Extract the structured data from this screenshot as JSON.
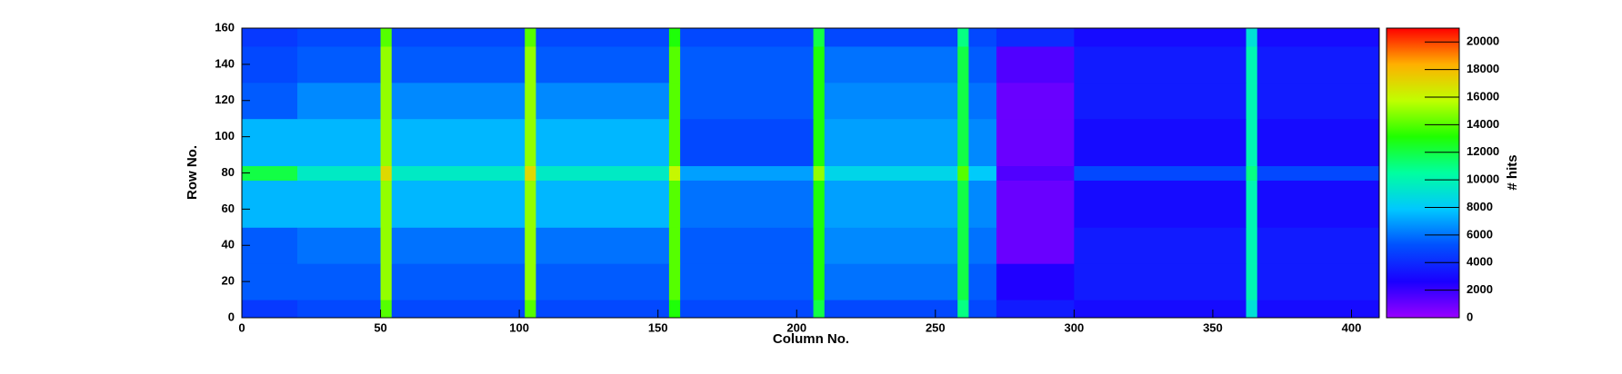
{
  "chart_data": {
    "type": "heatmap",
    "x_label": "Column No.",
    "y_label": "Row No.",
    "z_label": "# hits",
    "x_edges": [
      0,
      20,
      50,
      54,
      102,
      106,
      154,
      158,
      206,
      210,
      258,
      262,
      272,
      300,
      362,
      366,
      410
    ],
    "y_edges": [
      0,
      10,
      30,
      50,
      76,
      84,
      110,
      130,
      150,
      160
    ],
    "z": [
      [
        4500,
        5000,
        14000,
        5000,
        14000,
        5000,
        13000,
        5000,
        12000,
        5000,
        11000,
        5000,
        3500,
        3000,
        9000,
        3000
      ],
      [
        5500,
        5500,
        15000,
        5500,
        15000,
        5500,
        14000,
        5500,
        13000,
        6000,
        12000,
        5500,
        2500,
        3500,
        10000,
        3500
      ],
      [
        5500,
        6000,
        15000,
        6000,
        15000,
        6000,
        14000,
        5500,
        13000,
        6500,
        12000,
        6000,
        1000,
        3500,
        10000,
        3500
      ],
      [
        7500,
        7500,
        15000,
        7500,
        15000,
        7500,
        14000,
        6000,
        13000,
        7000,
        12000,
        6500,
        1000,
        3000,
        10000,
        3000
      ],
      [
        12000,
        9500,
        17000,
        9500,
        17000,
        9500,
        16000,
        7000,
        15000,
        8500,
        14000,
        8000,
        1500,
        5000,
        11000,
        5000
      ],
      [
        7500,
        7500,
        15000,
        7500,
        15000,
        7500,
        14000,
        5000,
        13000,
        7000,
        12000,
        6500,
        1000,
        3000,
        10000,
        3000
      ],
      [
        5500,
        6500,
        15000,
        6500,
        15000,
        6500,
        14000,
        5500,
        13000,
        6500,
        12000,
        6000,
        1000,
        3500,
        10000,
        3500
      ],
      [
        5000,
        5500,
        15000,
        5500,
        15000,
        5500,
        14000,
        5500,
        13000,
        6000,
        12000,
        5500,
        1500,
        3500,
        10000,
        3500
      ],
      [
        4500,
        5000,
        14000,
        5000,
        14000,
        5000,
        13000,
        5000,
        12000,
        5000,
        11000,
        5000,
        4000,
        3000,
        9000,
        3000
      ]
    ],
    "xlim": [
      0,
      410
    ],
    "xticks": [
      0,
      50,
      100,
      150,
      200,
      250,
      300,
      350,
      400
    ],
    "ylim": [
      0,
      160
    ],
    "yticks": [
      0,
      20,
      40,
      60,
      80,
      100,
      120,
      140,
      160
    ],
    "zlim": [
      0,
      21000
    ],
    "zticks": [
      0,
      2000,
      4000,
      6000,
      8000,
      10000,
      12000,
      14000,
      16000,
      18000,
      20000
    ],
    "colorscale": [
      "#9900ff",
      "#1a00ff",
      "#0050ff",
      "#00c8ff",
      "#00ffa0",
      "#20ff00",
      "#c0ff00",
      "#ffb000",
      "#ff0000"
    ]
  }
}
